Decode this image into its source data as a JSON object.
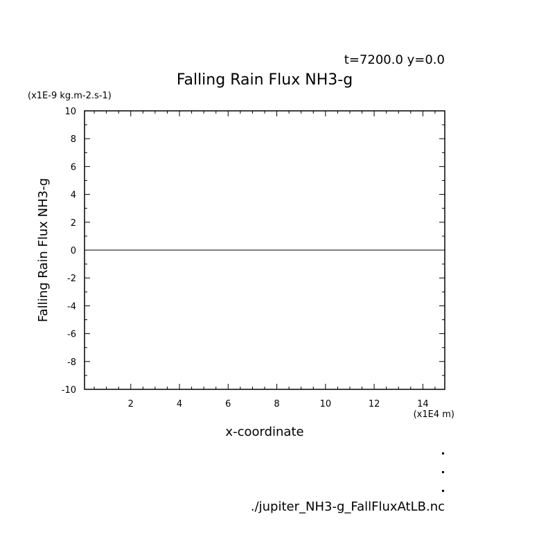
{
  "chart_data": {
    "type": "line",
    "title": "Falling Rain Flux NH3-g",
    "subtitle": "t=7200.0 y=0.0",
    "xlabel": "x-coordinate",
    "ylabel": "Falling Rain Flux NH3-g",
    "x_unit": "(x1E4 m)",
    "y_unit": "(x1E-9 kg.m-2.s-1)",
    "xlim": [
      0.1,
      14.9
    ],
    "ylim": [
      -10,
      10
    ],
    "xticks": [
      2,
      4,
      6,
      8,
      10,
      12,
      14
    ],
    "yticks": [
      -10,
      -8,
      -6,
      -4,
      -2,
      0,
      2,
      4,
      6,
      8,
      10
    ],
    "grid": false,
    "series": [
      {
        "x": [
          0.1,
          14.9
        ],
        "y": [
          0,
          0
        ],
        "color": "#000000"
      }
    ],
    "footer": "./jupiter_NH3-g_FallFluxAtLB.nc"
  }
}
